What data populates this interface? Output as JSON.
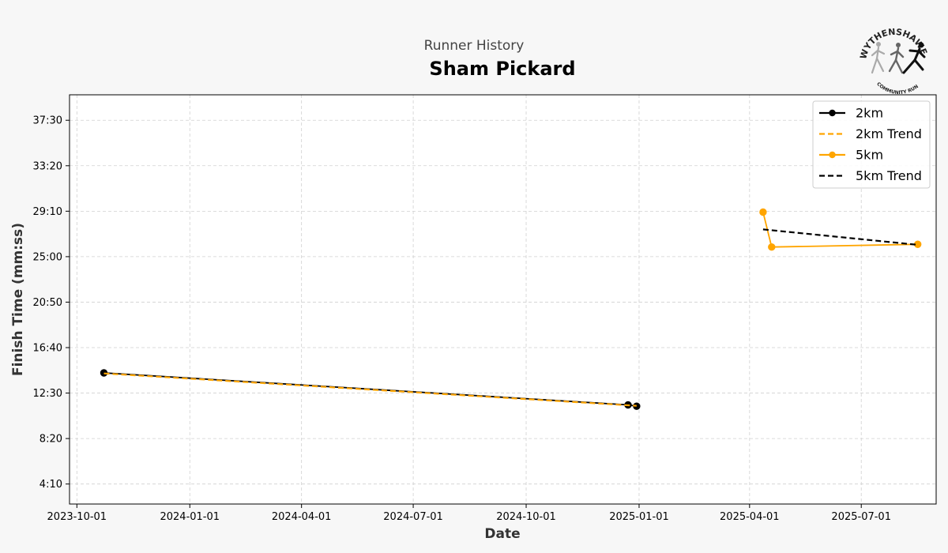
{
  "figure": {
    "suptitle": "Runner History",
    "title": "Sham Pickard",
    "logo": {
      "top_text": "WYTHENSHAWE",
      "bottom_text": "COMMUNITY RUN"
    }
  },
  "chart_data": {
    "type": "line",
    "title": "Sham Pickard",
    "subtitle": "Runner History",
    "xlabel": "Date",
    "ylabel": "Finish Time (mm:ss)",
    "x_type": "date",
    "xlim": [
      "2023-09-25",
      "2025-08-31"
    ],
    "ylim_seconds": [
      140,
      2390
    ],
    "x_ticks": [
      "2023-10-01",
      "2024-01-01",
      "2024-04-01",
      "2024-07-01",
      "2024-10-01",
      "2025-01-01",
      "2025-04-01",
      "2025-07-01"
    ],
    "x_tick_labels": [
      "2023-10-01",
      "2024-01-01",
      "2024-04-01",
      "2024-07-01",
      "2024-10-01",
      "2025-01-01",
      "2025-04-01",
      "2025-07-01"
    ],
    "y_ticks_seconds": [
      250,
      500,
      750,
      1000,
      1250,
      1500,
      1750,
      2000,
      2250
    ],
    "y_tick_labels": [
      "4:10",
      "8:20",
      "12:30",
      "16:40",
      "20:50",
      "25:00",
      "29:10",
      "33:20",
      "37:30"
    ],
    "grid": true,
    "legend_position": "top-right",
    "series": [
      {
        "name": "2km",
        "color": "#000000",
        "style": "solid",
        "marker": "circle",
        "points": [
          {
            "x": "2023-10-23",
            "y_seconds": 861
          },
          {
            "x": "2024-12-23",
            "y_seconds": 685
          },
          {
            "x": "2024-12-30",
            "y_seconds": 678
          }
        ]
      },
      {
        "name": "2km Trend",
        "color": "#FFA500",
        "style": "dashed",
        "marker": "none",
        "points": [
          {
            "x": "2023-10-23",
            "y_seconds": 858
          },
          {
            "x": "2024-12-30",
            "y_seconds": 680
          }
        ]
      },
      {
        "name": "5km",
        "color": "#FFA500",
        "style": "solid",
        "marker": "circle",
        "points": [
          {
            "x": "2025-04-12",
            "y_seconds": 1745
          },
          {
            "x": "2025-04-19",
            "y_seconds": 1553
          },
          {
            "x": "2025-08-16",
            "y_seconds": 1568
          }
        ]
      },
      {
        "name": "5km Trend",
        "color": "#000000",
        "style": "dashed",
        "marker": "none",
        "points": [
          {
            "x": "2025-04-12",
            "y_seconds": 1650
          },
          {
            "x": "2025-08-16",
            "y_seconds": 1565
          }
        ]
      }
    ]
  }
}
